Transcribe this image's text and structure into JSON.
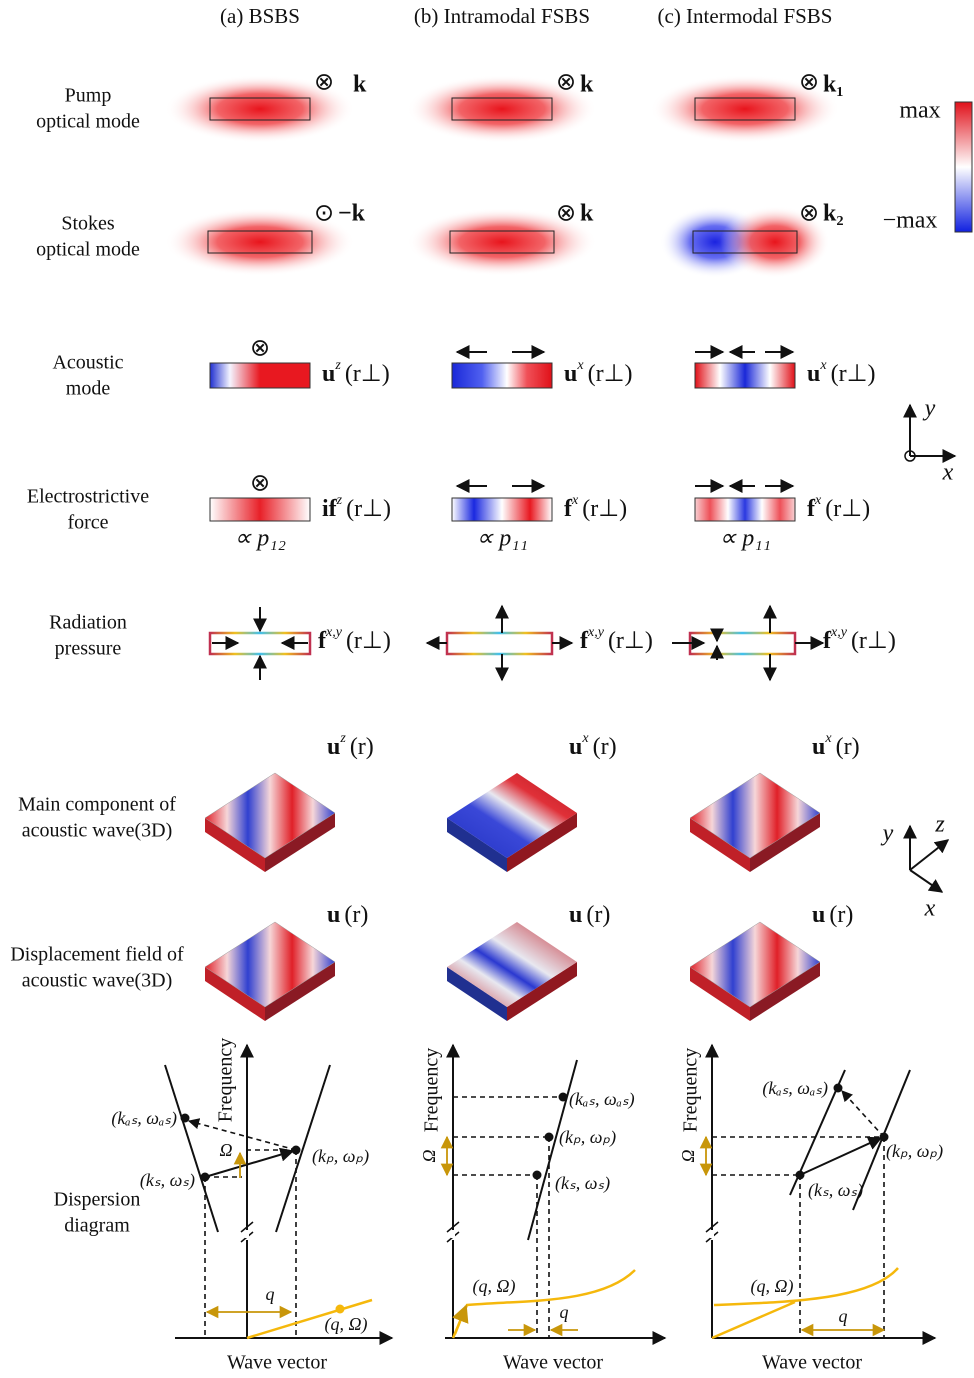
{
  "headers": [
    "(a) BSBS",
    "(b) Intramodal FSBS",
    "(c) Intermodal FSBS"
  ],
  "row_labels": [
    [
      "Pump",
      "optical mode"
    ],
    [
      "Stokes",
      "optical mode"
    ],
    [
      "Acoustic",
      "mode"
    ],
    [
      "Electrostrictive",
      "force"
    ],
    [
      "Radiation",
      "pressure"
    ],
    [
      "Main component of",
      "acoustic wave(3D)"
    ],
    [
      "Displacement field of",
      "acoustic wave(3D)"
    ],
    [
      "Dispersion",
      "diagram"
    ]
  ],
  "colorbar": {
    "max": "max",
    "min": "−max"
  },
  "axes_2d": {
    "y": "y",
    "x": "x"
  },
  "axes_3d": {
    "y": "y",
    "z": "z",
    "x": "x"
  },
  "columns": [
    {
      "pump": {
        "symbol": "⊗",
        "k": "k"
      },
      "stokes": {
        "symbol": "⊙",
        "k": "−k"
      },
      "acoustic_symbol": "⊗",
      "acoustic": {
        "base": "u",
        "sup": "z",
        "arg": "(r⊥)"
      },
      "force": {
        "base": "if",
        "sup": "z",
        "arg": "(r⊥)"
      },
      "force_coef": "∝ p₁₂",
      "radiation": {
        "base": "f",
        "sup": "x,y",
        "arg": "(r⊥)"
      },
      "main": {
        "base": "u",
        "sup": "z",
        "arg": "(r)"
      },
      "disp": {
        "base": "u",
        "arg": "(r)"
      }
    },
    {
      "pump": {
        "symbol": "⊗",
        "k": "k"
      },
      "stokes": {
        "symbol": "⊗",
        "k": "k"
      },
      "acoustic": {
        "base": "u",
        "sup": "x",
        "arg": "(r⊥)"
      },
      "force": {
        "base": "f",
        "sup": "x",
        "arg": "(r⊥)"
      },
      "force_coef": "∝ p₁₁",
      "radiation": {
        "base": "f",
        "sup": "x,y",
        "arg": "(r⊥)"
      },
      "main": {
        "base": "u",
        "sup": "x",
        "arg": "(r)"
      },
      "disp": {
        "base": "u",
        "arg": "(r)"
      }
    },
    {
      "pump": {
        "symbol": "⊗",
        "k": "k₁"
      },
      "stokes": {
        "symbol": "⊗",
        "k": "k₂"
      },
      "acoustic": {
        "base": "u",
        "sup": "x",
        "arg": "(r⊥)"
      },
      "force": {
        "base": "f",
        "sup": "x",
        "arg": "(r⊥)"
      },
      "force_coef": "∝ p₁₁",
      "radiation": {
        "base": "f",
        "sup": "x,y",
        "arg": "(r⊥)"
      },
      "main": {
        "base": "u",
        "sup": "x",
        "arg": "(r)"
      },
      "disp": {
        "base": "u",
        "arg": "(r)"
      }
    }
  ],
  "dispersion": {
    "frequency": "Frequency",
    "wave_vector": "Wave vector",
    "anti_stokes": "(kₐₛ, ωₐₛ)",
    "pump": "(kₚ, ωₚ)",
    "stokes": "(kₛ, ωₛ)",
    "omega": "Ω",
    "q": "q",
    "acoustic_point": "(q, Ω)"
  }
}
